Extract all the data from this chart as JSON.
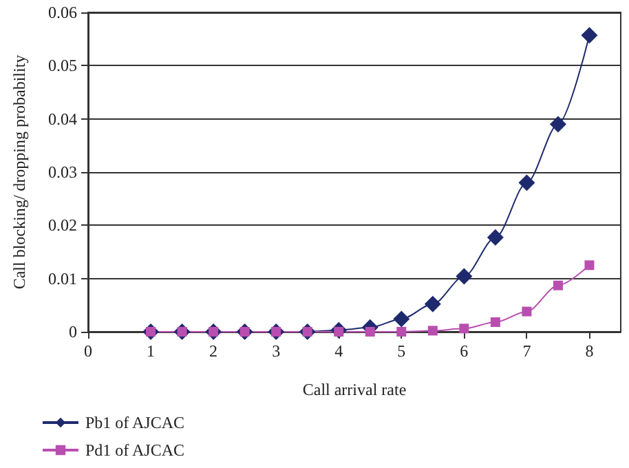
{
  "chart_data": {
    "type": "line",
    "xlabel": "Call arrival rate",
    "ylabel": "Call blocking/ dropping probability",
    "x": [
      1,
      1.5,
      2,
      2.5,
      3,
      3.5,
      4,
      4.5,
      5,
      5.5,
      6,
      6.5,
      7,
      7.5,
      8
    ],
    "series": [
      {
        "name": "Pb1 of AJCAC",
        "color": "#1f2a6e",
        "marker": "diamond",
        "values": [
          0,
          0,
          0,
          0,
          0,
          0,
          0.0003,
          0.0008,
          0.0024,
          0.0052,
          0.0104,
          0.0177,
          0.028,
          0.039,
          0.0557
        ]
      },
      {
        "name": "Pd1 of AJCAC",
        "color": "#b84fb0",
        "marker": "square",
        "values": [
          0,
          0,
          0,
          0,
          0,
          0,
          0,
          0,
          0,
          0.0002,
          0.0006,
          0.0018,
          0.0038,
          0.0087,
          0.0125
        ]
      }
    ],
    "xlim": [
      0,
      8.5
    ],
    "xticks": [
      0,
      1,
      2,
      3,
      4,
      5,
      6,
      7,
      8
    ],
    "ylim": [
      0,
      0.06
    ],
    "yticks": [
      0,
      0.01,
      0.02,
      0.03,
      0.04,
      0.05,
      0.06
    ],
    "grid": "y",
    "legend": "bottom left"
  }
}
